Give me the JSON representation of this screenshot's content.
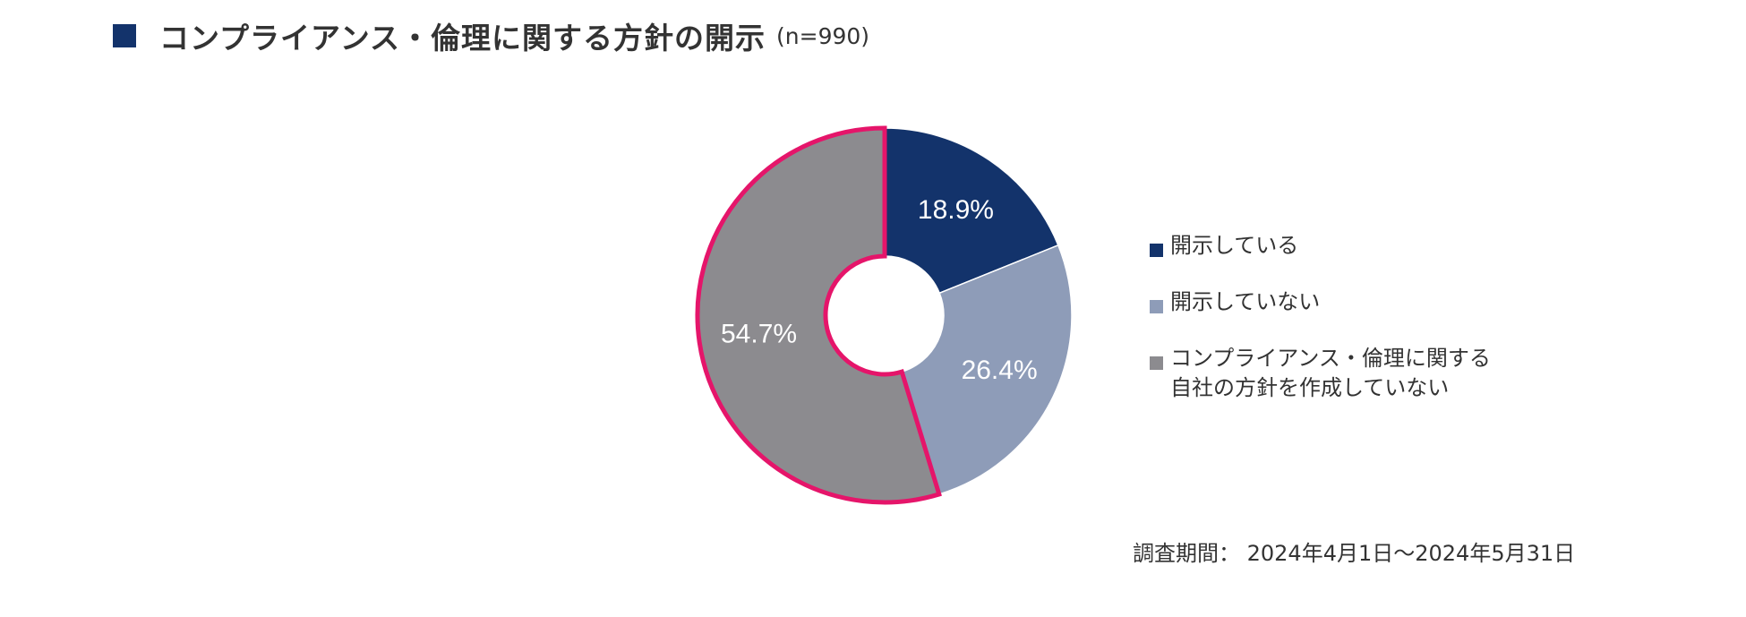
{
  "header": {
    "title": "コンプライアンス・倫理に関する方針の開示",
    "sample_size": "(n=990)",
    "marker_color": "#13336b"
  },
  "chart_data": {
    "type": "pie",
    "variant": "donut",
    "title": "コンプライアンス・倫理に関する方針の開示",
    "sample_size": "(n=990)",
    "slices": [
      {
        "label": "開示している",
        "value": 18.9,
        "value_label": "18.9%",
        "color": "#13336b"
      },
      {
        "label": "開示していない",
        "value": 26.4,
        "value_label": "26.4%",
        "color": "#8e9cb8"
      },
      {
        "label": "コンプライアンス・倫理に関する\n自社の方針を作成していない",
        "value": 54.7,
        "value_label": "54.7%",
        "color": "#8c8b8f",
        "highlighted": true,
        "highlight_color": "#e5156a"
      }
    ],
    "start": "12 o'clock",
    "direction": "clockwise",
    "legend": "right"
  },
  "footer": {
    "period": "調査期間： 2024年4月1日〜2024年5月31日"
  }
}
